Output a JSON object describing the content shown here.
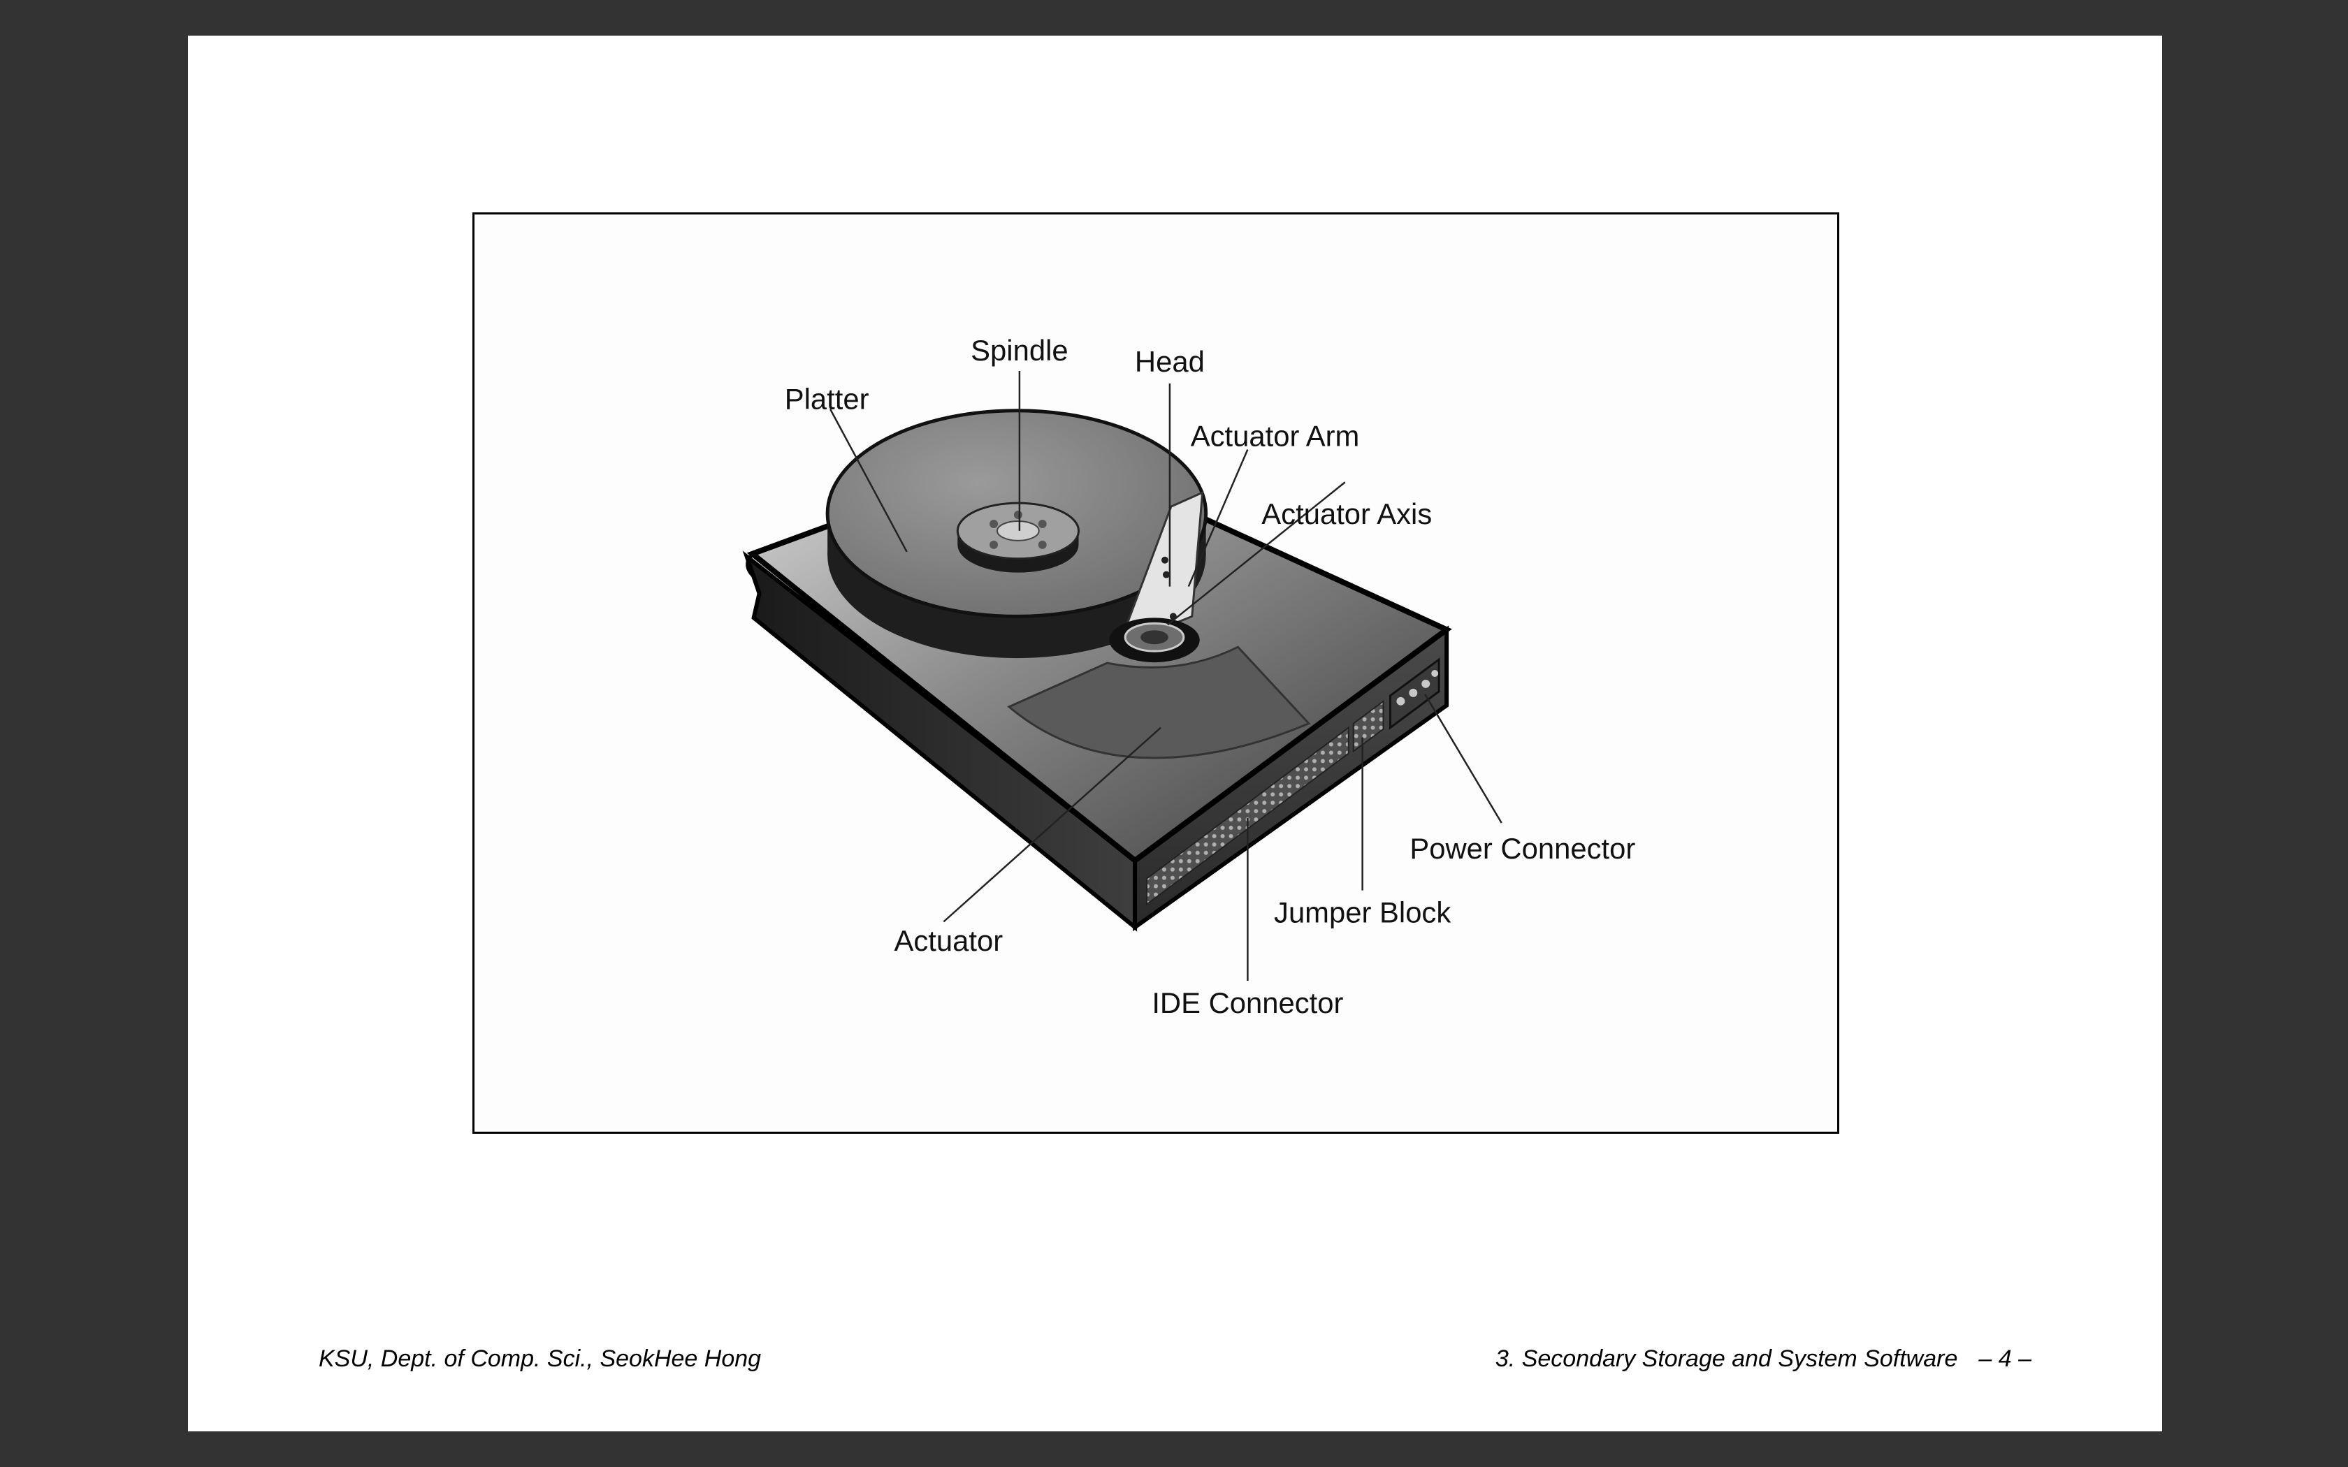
{
  "slide": {
    "footer_left": "KSU, Dept. of Comp. Sci., SeokHee Hong",
    "footer_right": "3. Secondary Storage and System Software",
    "page_number": "– 4 –"
  },
  "diagram": {
    "labels": {
      "spindle": "Spindle",
      "platter": "Platter",
      "head": "Head",
      "actuator_arm": "Actuator Arm",
      "actuator_axis": "Actuator Axis",
      "power_connector": "Power Connector",
      "jumper_block": "Jumper Block",
      "actuator": "Actuator",
      "ide_connector": "IDE Connector"
    }
  }
}
